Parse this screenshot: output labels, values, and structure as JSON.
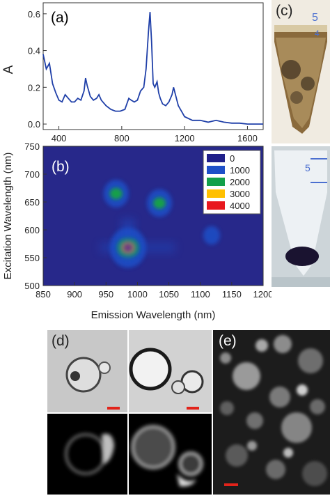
{
  "panel_labels": {
    "a": "(a)",
    "b": "(b)",
    "c": "(c)",
    "d": "(d)",
    "e": "(e)"
  },
  "chart_data": [
    {
      "type": "line",
      "panel": "(a)",
      "xlabel": "",
      "ylabel": "A",
      "xlim": [
        300,
        1700
      ],
      "ylim": [
        -0.03,
        0.66
      ],
      "xticks": [
        400,
        800,
        1200,
        1600
      ],
      "yticks": [
        0.0,
        0.2,
        0.4,
        0.6
      ],
      "ytick_labels": [
        "0.0",
        "0.2",
        "0.4",
        "0.6"
      ],
      "line_color": "#1f3fa8",
      "x": [
        300,
        320,
        340,
        360,
        380,
        400,
        420,
        440,
        460,
        480,
        500,
        520,
        540,
        560,
        570,
        580,
        600,
        620,
        640,
        655,
        670,
        700,
        730,
        760,
        790,
        820,
        845,
        860,
        880,
        900,
        920,
        940,
        955,
        970,
        980,
        990,
        1000,
        1010,
        1025,
        1035,
        1045,
        1060,
        1080,
        1100,
        1120,
        1130,
        1145,
        1160,
        1180,
        1200,
        1250,
        1300,
        1350,
        1400,
        1450,
        1500,
        1550,
        1600,
        1650,
        1700
      ],
      "y": [
        0.38,
        0.3,
        0.33,
        0.22,
        0.17,
        0.13,
        0.12,
        0.16,
        0.14,
        0.12,
        0.12,
        0.14,
        0.13,
        0.18,
        0.25,
        0.21,
        0.15,
        0.13,
        0.14,
        0.16,
        0.13,
        0.1,
        0.08,
        0.07,
        0.07,
        0.08,
        0.14,
        0.13,
        0.12,
        0.13,
        0.18,
        0.2,
        0.3,
        0.5,
        0.61,
        0.45,
        0.22,
        0.2,
        0.23,
        0.17,
        0.14,
        0.11,
        0.1,
        0.12,
        0.16,
        0.2,
        0.15,
        0.1,
        0.07,
        0.04,
        0.02,
        0.02,
        0.01,
        0.02,
        0.01,
        0.005,
        0.005,
        0.0,
        0.0,
        0.0
      ]
    },
    {
      "type": "heatmap",
      "panel": "(b)",
      "xlabel": "Emission Wavelength (nm)",
      "ylabel": "Excitation Wavelength (nm)",
      "xlim": [
        850,
        1200
      ],
      "ylim": [
        500,
        750
      ],
      "xticks": [
        850,
        900,
        950,
        1000,
        1050,
        1100,
        1150,
        1200
      ],
      "yticks": [
        500,
        550,
        600,
        650,
        700,
        750
      ],
      "background_color": "#27288a",
      "legend_position": "top-right",
      "legend": [
        {
          "label": "0",
          "color": "#20208a"
        },
        {
          "label": "1000",
          "color": "#1e50c8"
        },
        {
          "label": "2000",
          "color": "#13a04a"
        },
        {
          "label": "3000",
          "color": "#ffc000"
        },
        {
          "label": "4000",
          "color": "#e8181e"
        }
      ],
      "peaks": [
        {
          "emission": 985,
          "excitation": 568,
          "intensity": 4200
        },
        {
          "emission": 1035,
          "excitation": 648,
          "intensity": 1900
        },
        {
          "emission": 966,
          "excitation": 665,
          "intensity": 1700
        },
        {
          "emission": 1118,
          "excitation": 590,
          "intensity": 700
        }
      ]
    }
  ]
}
